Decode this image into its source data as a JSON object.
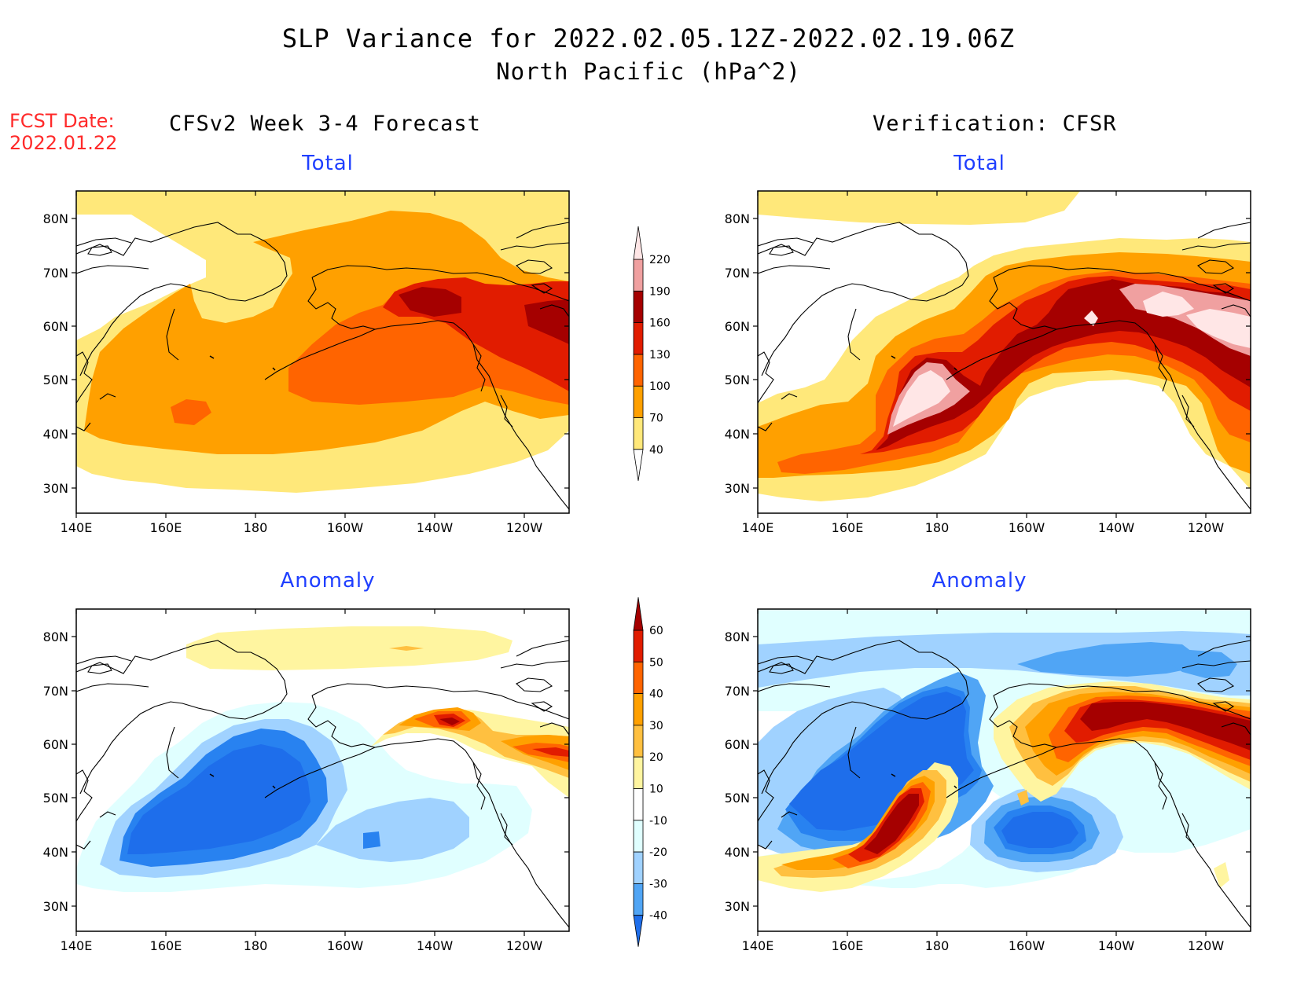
{
  "title": "SLP Variance for 2022.02.05.12Z-2022.02.19.06Z",
  "subtitle": "North Pacific (hPa^2)",
  "forecast_date_label": "FCST Date:",
  "forecast_date": "2022.01.22",
  "left_column_title": "CFSv2 Week 3-4 Forecast",
  "right_column_title": "Verification: CFSR",
  "panels": {
    "top_left": "Total",
    "top_right": "Total",
    "bottom_left": "Anomaly",
    "bottom_right": "Anomaly"
  },
  "axes": {
    "lon_labels": [
      "140E",
      "160E",
      "180",
      "160W",
      "140W",
      "120W"
    ],
    "lat_labels": [
      "80N",
      "70N",
      "60N",
      "50N",
      "40N",
      "30N"
    ]
  },
  "colorbars": {
    "total": {
      "levels": [
        "40",
        "70",
        "100",
        "130",
        "160",
        "190",
        "220"
      ],
      "colors": [
        "#ffe87a",
        "#ffa000",
        "#ff6400",
        "#e11c00",
        "#a50000",
        "#f0a0a0",
        "#ffe6e6"
      ]
    },
    "anomaly": {
      "levels": [
        "60",
        "50",
        "40",
        "30",
        "20",
        "10",
        "-10",
        "-20",
        "-30",
        "-40"
      ],
      "colors_high_to_low": [
        "#a50000",
        "#e11c00",
        "#ff6400",
        "#ffa000",
        "#ffc040",
        "#fff5a0",
        "#ffffff",
        "#e0ffff",
        "#a0d2ff",
        "#50a5f5",
        "#2882f0",
        "#1e6eeb"
      ]
    }
  },
  "colors": {
    "title_accent": "#1f3fff",
    "fcst_date": "#ff2a2a"
  }
}
